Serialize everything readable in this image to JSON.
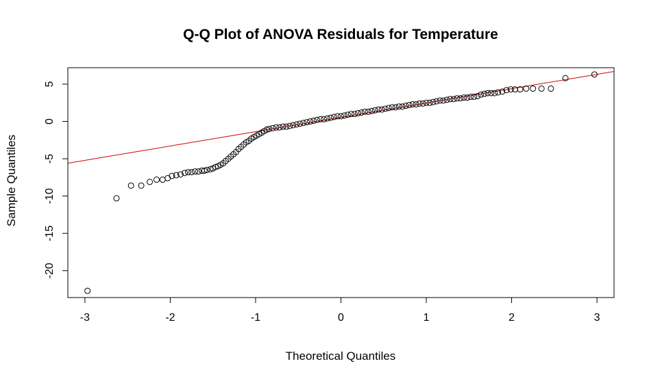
{
  "chart_data": {
    "type": "scatter",
    "title": "Q-Q Plot of ANOVA Residuals for Temperature",
    "xlabel": "Theoretical Quantiles",
    "ylabel": "Sample Quantiles",
    "xlim": [
      -3.2,
      3.2
    ],
    "ylim": [
      -23.6,
      7.2
    ],
    "x_ticks": [
      -3,
      -2,
      -1,
      0,
      1,
      2,
      3
    ],
    "x_tick_labels": [
      "-3",
      "-2",
      "-1",
      "0",
      "1",
      "2",
      "3"
    ],
    "y_ticks": [
      -20,
      -15,
      -10,
      -5,
      0,
      5
    ],
    "y_tick_labels": [
      "-20",
      "-15",
      "-10",
      "-5",
      "0",
      "5"
    ],
    "grid": false,
    "legend": "none",
    "point_style": "open-circle",
    "point_color": "#000000",
    "reference_line": {
      "color": "#cc0000",
      "x1": -3.2,
      "y1": -5.6,
      "x2": 3.2,
      "y2": 6.7
    },
    "series": [
      {
        "points": [
          [
            -2.97,
            -22.7
          ],
          [
            -2.63,
            -10.3
          ],
          [
            -2.46,
            -8.6
          ],
          [
            -2.34,
            -8.6
          ],
          [
            -2.24,
            -8.1
          ],
          [
            -2.16,
            -7.8
          ],
          [
            -2.09,
            -7.8
          ],
          [
            -2.03,
            -7.6
          ],
          [
            -1.98,
            -7.3
          ],
          [
            -1.93,
            -7.2
          ],
          [
            -1.88,
            -7.1
          ],
          [
            -1.83,
            -6.9
          ],
          [
            -1.79,
            -6.8
          ],
          [
            -1.75,
            -6.8
          ],
          [
            -1.71,
            -6.7
          ],
          [
            -1.67,
            -6.7
          ],
          [
            -1.63,
            -6.6
          ],
          [
            -1.6,
            -6.6
          ],
          [
            -1.57,
            -6.5
          ],
          [
            -1.53,
            -6.4
          ],
          [
            -1.5,
            -6.3
          ],
          [
            -1.47,
            -6.1
          ],
          [
            -1.44,
            -6.0
          ],
          [
            -1.41,
            -5.8
          ],
          [
            -1.38,
            -5.6
          ],
          [
            -1.35,
            -5.3
          ],
          [
            -1.32,
            -5.0
          ],
          [
            -1.29,
            -4.7
          ],
          [
            -1.26,
            -4.4
          ],
          [
            -1.23,
            -4.1
          ],
          [
            -1.2,
            -3.7
          ],
          [
            -1.17,
            -3.4
          ],
          [
            -1.14,
            -3.1
          ],
          [
            -1.11,
            -2.8
          ],
          [
            -1.08,
            -2.6
          ],
          [
            -1.05,
            -2.3
          ],
          [
            -1.02,
            -2.1
          ],
          [
            -0.99,
            -1.9
          ],
          [
            -0.96,
            -1.7
          ],
          [
            -0.93,
            -1.5
          ],
          [
            -0.9,
            -1.3
          ],
          [
            -0.87,
            -1.1
          ],
          [
            -0.84,
            -1.0
          ],
          [
            -0.8,
            -0.9
          ],
          [
            -0.76,
            -0.8
          ],
          [
            -0.72,
            -0.8
          ],
          [
            -0.68,
            -0.7
          ],
          [
            -0.64,
            -0.7
          ],
          [
            -0.6,
            -0.6
          ],
          [
            -0.56,
            -0.5
          ],
          [
            -0.52,
            -0.4
          ],
          [
            -0.48,
            -0.3
          ],
          [
            -0.44,
            -0.2
          ],
          [
            -0.4,
            -0.1
          ],
          [
            -0.36,
            0.0
          ],
          [
            -0.32,
            0.1
          ],
          [
            -0.28,
            0.2
          ],
          [
            -0.24,
            0.3
          ],
          [
            -0.2,
            0.3
          ],
          [
            -0.16,
            0.4
          ],
          [
            -0.12,
            0.5
          ],
          [
            -0.08,
            0.6
          ],
          [
            -0.04,
            0.7
          ],
          [
            0.0,
            0.7
          ],
          [
            0.04,
            0.8
          ],
          [
            0.08,
            0.9
          ],
          [
            0.12,
            1.0
          ],
          [
            0.16,
            1.0
          ],
          [
            0.2,
            1.1
          ],
          [
            0.24,
            1.2
          ],
          [
            0.28,
            1.3
          ],
          [
            0.32,
            1.3
          ],
          [
            0.36,
            1.4
          ],
          [
            0.4,
            1.5
          ],
          [
            0.44,
            1.6
          ],
          [
            0.48,
            1.6
          ],
          [
            0.52,
            1.7
          ],
          [
            0.56,
            1.8
          ],
          [
            0.6,
            1.9
          ],
          [
            0.64,
            1.9
          ],
          [
            0.68,
            2.0
          ],
          [
            0.72,
            2.0
          ],
          [
            0.76,
            2.1
          ],
          [
            0.8,
            2.2
          ],
          [
            0.84,
            2.3
          ],
          [
            0.88,
            2.3
          ],
          [
            0.92,
            2.4
          ],
          [
            0.96,
            2.4
          ],
          [
            1.0,
            2.5
          ],
          [
            1.04,
            2.5
          ],
          [
            1.08,
            2.6
          ],
          [
            1.12,
            2.7
          ],
          [
            1.16,
            2.8
          ],
          [
            1.2,
            2.8
          ],
          [
            1.24,
            2.9
          ],
          [
            1.28,
            3.0
          ],
          [
            1.32,
            3.0
          ],
          [
            1.36,
            3.1
          ],
          [
            1.4,
            3.1
          ],
          [
            1.44,
            3.2
          ],
          [
            1.48,
            3.2
          ],
          [
            1.52,
            3.3
          ],
          [
            1.56,
            3.3
          ],
          [
            1.6,
            3.4
          ],
          [
            1.64,
            3.6
          ],
          [
            1.68,
            3.7
          ],
          [
            1.72,
            3.8
          ],
          [
            1.76,
            3.8
          ],
          [
            1.8,
            3.8
          ],
          [
            1.84,
            3.9
          ],
          [
            1.89,
            4.0
          ],
          [
            1.94,
            4.2
          ],
          [
            1.99,
            4.3
          ],
          [
            2.04,
            4.3
          ],
          [
            2.1,
            4.3
          ],
          [
            2.17,
            4.4
          ],
          [
            2.25,
            4.4
          ],
          [
            2.35,
            4.4
          ],
          [
            2.46,
            4.4
          ],
          [
            2.63,
            5.8
          ],
          [
            2.97,
            6.3
          ]
        ]
      }
    ]
  }
}
